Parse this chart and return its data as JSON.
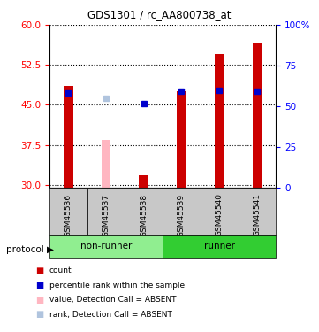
{
  "title": "GDS1301 / rc_AA800738_at",
  "samples": [
    "GSM45536",
    "GSM45537",
    "GSM45538",
    "GSM45539",
    "GSM45540",
    "GSM45541"
  ],
  "red_values": [
    48.5,
    null,
    31.8,
    47.5,
    54.5,
    56.5
  ],
  "pink_values": [
    null,
    38.5,
    null,
    null,
    null,
    null
  ],
  "blue_values": [
    47.2,
    null,
    45.3,
    47.5,
    47.8,
    47.5
  ],
  "lavender_values": [
    null,
    46.2,
    null,
    null,
    null,
    null
  ],
  "ymin": 29.5,
  "ymax": 60,
  "y_left_ticks": [
    30,
    37.5,
    45,
    52.5,
    60
  ],
  "y_right_ticks": [
    0,
    25,
    50,
    75,
    100
  ],
  "y_right_labels": [
    "0",
    "25",
    "50",
    "75",
    "100%"
  ],
  "bar_width": 0.25,
  "non_runner_color": "#90EE90",
  "runner_color": "#32CD32",
  "group_label_color": "#90EE90",
  "sample_box_color": "#C8C8C8",
  "legend_colors": [
    "#CC0000",
    "#0000CC",
    "#FFB6C1",
    "#B0C4DE"
  ],
  "legend_labels": [
    "count",
    "percentile rank within the sample",
    "value, Detection Call = ABSENT",
    "rank, Detection Call = ABSENT"
  ]
}
